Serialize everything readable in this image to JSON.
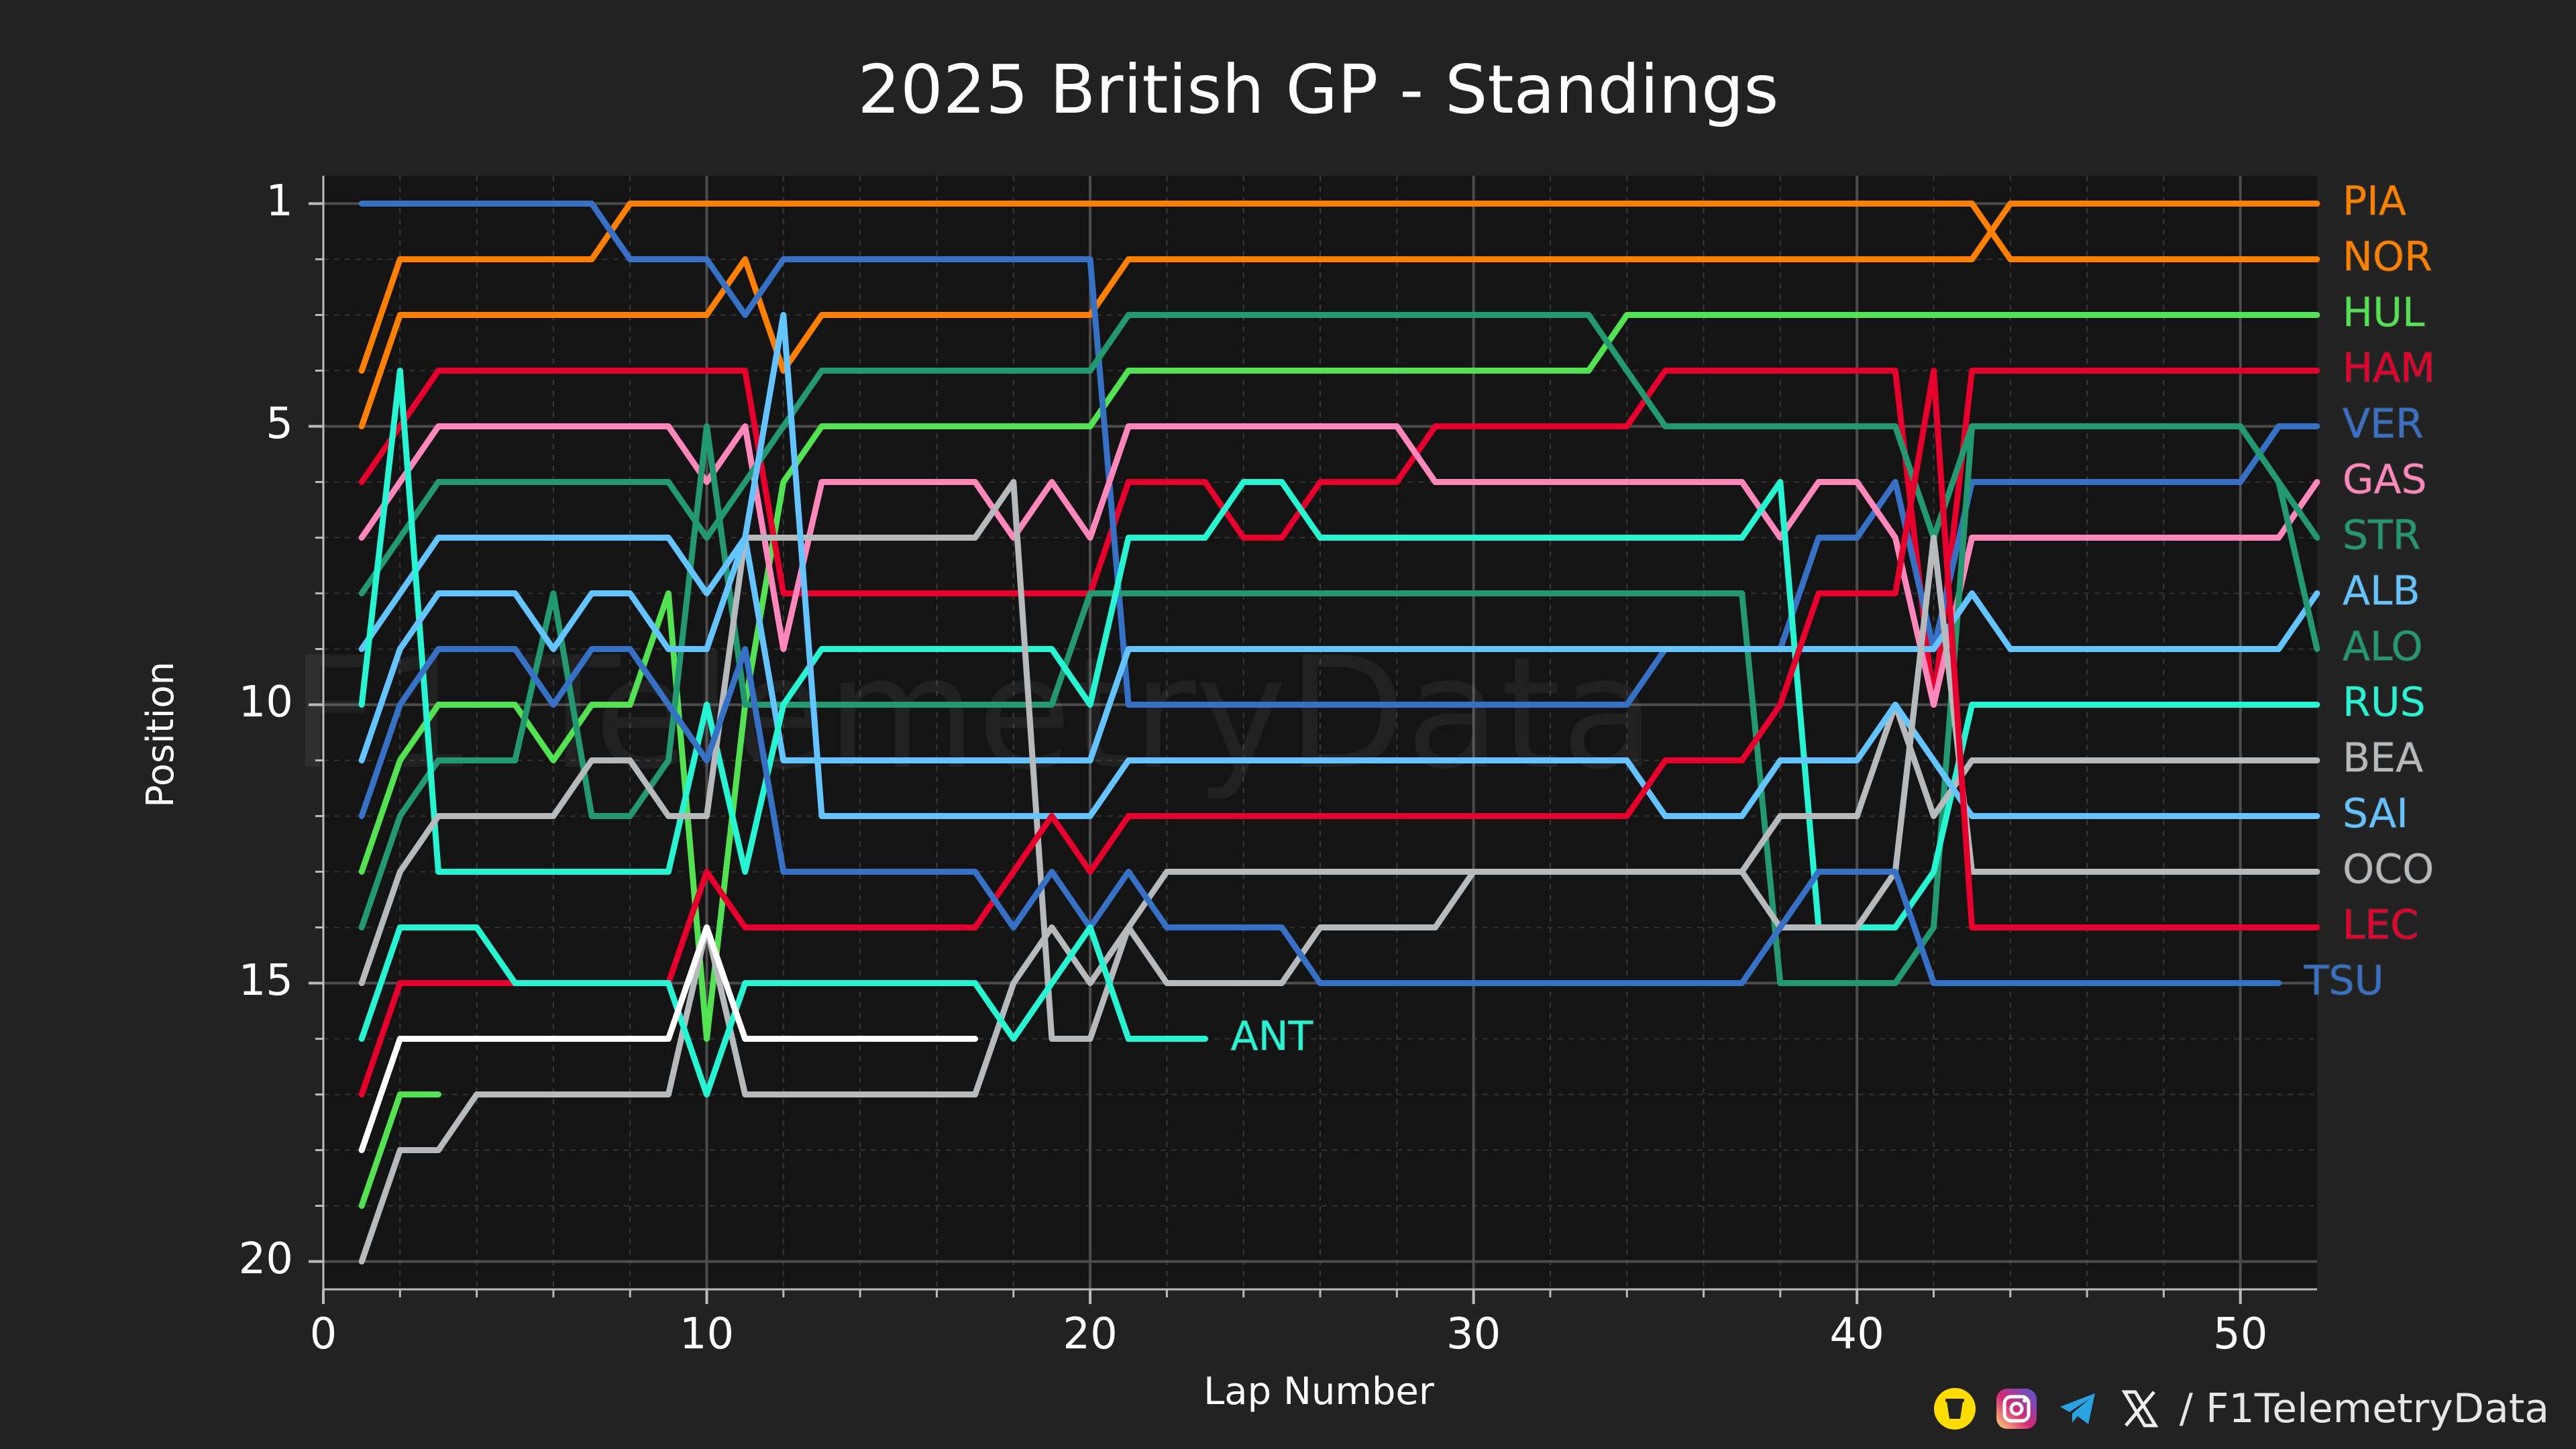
{
  "chart_data": {
    "type": "line",
    "title": "2025 British GP - Standings",
    "xlabel": "Lap Number",
    "ylabel": "Position",
    "xlim": [
      0,
      52
    ],
    "ylim": [
      20.5,
      0.5
    ],
    "x_ticks": [
      0,
      10,
      20,
      30,
      40,
      50
    ],
    "y_ticks": [
      1,
      5,
      10,
      15,
      20
    ],
    "grid": true,
    "y_inverted": true,
    "watermark": "F1 TelemetryData",
    "series": [
      {
        "name": "NOR",
        "color": "#ff8000",
        "values": [
          [
            1,
            4
          ],
          [
            2,
            2
          ],
          [
            7,
            2
          ],
          [
            8,
            1
          ],
          [
            43,
            1
          ],
          [
            44,
            2
          ],
          [
            52,
            2
          ]
        ]
      },
      {
        "name": "PIA",
        "color": "#ff8000",
        "values": [
          [
            1,
            5
          ],
          [
            2,
            3
          ],
          [
            10,
            3
          ],
          [
            11,
            2
          ],
          [
            12,
            4
          ],
          [
            13,
            3
          ],
          [
            20,
            3
          ],
          [
            21,
            2
          ],
          [
            43,
            2
          ],
          [
            44,
            1
          ],
          [
            52,
            1
          ]
        ]
      },
      {
        "name": "HUL",
        "color": "#52e252",
        "values": [
          [
            1,
            13
          ],
          [
            2,
            11
          ],
          [
            3,
            10
          ],
          [
            5,
            10
          ],
          [
            6,
            11
          ],
          [
            7,
            10
          ],
          [
            8,
            10
          ],
          [
            9,
            8
          ],
          [
            10,
            16
          ],
          [
            11,
            10
          ],
          [
            12,
            6
          ],
          [
            13,
            5
          ],
          [
            20,
            5
          ],
          [
            21,
            4
          ],
          [
            33,
            4
          ],
          [
            34,
            3
          ],
          [
            52,
            3
          ]
        ]
      },
      {
        "name": "HAM",
        "color": "#e8002d",
        "values": [
          [
            1,
            6
          ],
          [
            2,
            5
          ],
          [
            3,
            4
          ],
          [
            11,
            4
          ],
          [
            12,
            8
          ],
          [
            20,
            8
          ],
          [
            21,
            6
          ],
          [
            23,
            6
          ],
          [
            24,
            7
          ],
          [
            25,
            7
          ],
          [
            26,
            6
          ],
          [
            28,
            6
          ],
          [
            29,
            5
          ],
          [
            34,
            5
          ],
          [
            35,
            4
          ],
          [
            41,
            4
          ],
          [
            42,
            10
          ],
          [
            43,
            4
          ],
          [
            52,
            4
          ]
        ]
      },
      {
        "name": "VER",
        "color": "#3671c6",
        "values": [
          [
            1,
            1
          ],
          [
            7,
            1
          ],
          [
            8,
            2
          ],
          [
            10,
            2
          ],
          [
            11,
            3
          ],
          [
            12,
            2
          ],
          [
            20,
            2
          ],
          [
            21,
            10
          ],
          [
            34,
            10
          ],
          [
            35,
            9
          ],
          [
            38,
            9
          ],
          [
            39,
            7
          ],
          [
            40,
            7
          ],
          [
            41,
            6
          ],
          [
            42,
            9
          ],
          [
            43,
            6
          ],
          [
            50,
            6
          ],
          [
            51,
            5
          ],
          [
            52,
            5
          ]
        ]
      },
      {
        "name": "GAS",
        "color": "#ff87bc",
        "values": [
          [
            1,
            7
          ],
          [
            2,
            6
          ],
          [
            3,
            5
          ],
          [
            9,
            5
          ],
          [
            10,
            6
          ],
          [
            11,
            5
          ],
          [
            12,
            9
          ],
          [
            13,
            6
          ],
          [
            17,
            6
          ],
          [
            18,
            7
          ],
          [
            19,
            6
          ],
          [
            20,
            7
          ],
          [
            21,
            5
          ],
          [
            28,
            5
          ],
          [
            29,
            6
          ],
          [
            37,
            6
          ],
          [
            38,
            7
          ],
          [
            39,
            6
          ],
          [
            40,
            6
          ],
          [
            41,
            7
          ],
          [
            42,
            10
          ],
          [
            43,
            7
          ],
          [
            50,
            7
          ],
          [
            51,
            7
          ],
          [
            52,
            6
          ]
        ]
      },
      {
        "name": "STR",
        "color": "#229971",
        "values": [
          [
            1,
            14
          ],
          [
            2,
            12
          ],
          [
            3,
            11
          ],
          [
            5,
            11
          ],
          [
            6,
            8
          ],
          [
            7,
            12
          ],
          [
            8,
            12
          ],
          [
            9,
            11
          ],
          [
            10,
            5
          ],
          [
            11,
            10
          ],
          [
            19,
            10
          ],
          [
            20,
            8
          ],
          [
            21,
            8
          ],
          [
            37,
            8
          ],
          [
            38,
            15
          ],
          [
            41,
            15
          ],
          [
            42,
            14
          ],
          [
            43,
            5
          ],
          [
            50,
            5
          ],
          [
            51,
            6
          ],
          [
            52,
            7
          ]
        ]
      },
      {
        "name": "ALB",
        "color": "#64c4ff",
        "values": [
          [
            1,
            9
          ],
          [
            2,
            8
          ],
          [
            3,
            7
          ],
          [
            9,
            7
          ],
          [
            10,
            8
          ],
          [
            11,
            7
          ],
          [
            12,
            11
          ],
          [
            13,
            11
          ],
          [
            20,
            11
          ],
          [
            21,
            9
          ],
          [
            42,
            9
          ],
          [
            43,
            8
          ],
          [
            44,
            9
          ],
          [
            51,
            9
          ],
          [
            52,
            8
          ]
        ]
      },
      {
        "name": "ALO",
        "color": "#229971",
        "values": [
          [
            1,
            8
          ],
          [
            2,
            7
          ],
          [
            3,
            6
          ],
          [
            9,
            6
          ],
          [
            10,
            7
          ],
          [
            11,
            6
          ],
          [
            12,
            5
          ],
          [
            13,
            4
          ],
          [
            20,
            4
          ],
          [
            21,
            3
          ],
          [
            33,
            3
          ],
          [
            34,
            4
          ],
          [
            35,
            5
          ],
          [
            41,
            5
          ],
          [
            42,
            7
          ],
          [
            43,
            5
          ],
          [
            50,
            5
          ],
          [
            51,
            6
          ],
          [
            52,
            9
          ]
        ]
      },
      {
        "name": "RUS",
        "color": "#27f4d2",
        "values": [
          [
            1,
            10
          ],
          [
            2,
            4
          ],
          [
            3,
            13
          ],
          [
            5,
            13
          ],
          [
            6,
            13
          ],
          [
            9,
            13
          ],
          [
            10,
            10
          ],
          [
            11,
            13
          ],
          [
            12,
            10
          ],
          [
            13,
            9
          ],
          [
            19,
            9
          ],
          [
            20,
            10
          ],
          [
            21,
            7
          ],
          [
            23,
            7
          ],
          [
            24,
            6
          ],
          [
            25,
            6
          ],
          [
            26,
            7
          ],
          [
            37,
            7
          ],
          [
            38,
            6
          ],
          [
            39,
            14
          ],
          [
            41,
            14
          ],
          [
            42,
            13
          ],
          [
            43,
            10
          ],
          [
            52,
            10
          ]
        ]
      },
      {
        "name": "BEA",
        "color": "#b6babd",
        "values": [
          [
            1,
            15
          ],
          [
            2,
            13
          ],
          [
            3,
            12
          ],
          [
            6,
            12
          ],
          [
            7,
            11
          ],
          [
            8,
            11
          ],
          [
            9,
            12
          ],
          [
            10,
            12
          ],
          [
            11,
            7
          ],
          [
            17,
            7
          ],
          [
            18,
            6
          ],
          [
            19,
            16
          ],
          [
            20,
            16
          ],
          [
            21,
            14
          ],
          [
            22,
            13
          ],
          [
            37,
            13
          ],
          [
            38,
            12
          ],
          [
            40,
            12
          ],
          [
            41,
            10
          ],
          [
            42,
            12
          ],
          [
            43,
            11
          ],
          [
            52,
            11
          ]
        ]
      },
      {
        "name": "SAI",
        "color": "#64c4ff",
        "values": [
          [
            1,
            11
          ],
          [
            2,
            9
          ],
          [
            3,
            8
          ],
          [
            5,
            8
          ],
          [
            6,
            9
          ],
          [
            7,
            8
          ],
          [
            8,
            8
          ],
          [
            9,
            9
          ],
          [
            10,
            9
          ],
          [
            11,
            7
          ],
          [
            12,
            3
          ],
          [
            13,
            12
          ],
          [
            14,
            12
          ],
          [
            20,
            12
          ],
          [
            21,
            11
          ],
          [
            34,
            11
          ],
          [
            35,
            12
          ],
          [
            37,
            12
          ],
          [
            38,
            11
          ],
          [
            40,
            11
          ],
          [
            41,
            10
          ],
          [
            42,
            11
          ],
          [
            43,
            12
          ],
          [
            52,
            12
          ]
        ]
      },
      {
        "name": "OCO",
        "color": "#b6babd",
        "values": [
          [
            1,
            20
          ],
          [
            2,
            18
          ],
          [
            3,
            18
          ],
          [
            4,
            17
          ],
          [
            9,
            17
          ],
          [
            10,
            14
          ],
          [
            11,
            17
          ],
          [
            17,
            17
          ],
          [
            18,
            15
          ],
          [
            19,
            14
          ],
          [
            20,
            15
          ],
          [
            21,
            14
          ],
          [
            22,
            15
          ],
          [
            25,
            15
          ],
          [
            26,
            14
          ],
          [
            29,
            14
          ],
          [
            30,
            13
          ],
          [
            37,
            13
          ],
          [
            38,
            14
          ],
          [
            40,
            14
          ],
          [
            41,
            13
          ],
          [
            42,
            7
          ],
          [
            43,
            13
          ],
          [
            52,
            13
          ]
        ]
      },
      {
        "name": "LEC",
        "color": "#e8002d",
        "values": [
          [
            1,
            17
          ],
          [
            2,
            15
          ],
          [
            9,
            15
          ],
          [
            10,
            13
          ],
          [
            11,
            14
          ],
          [
            17,
            14
          ],
          [
            18,
            13
          ],
          [
            19,
            12
          ],
          [
            20,
            13
          ],
          [
            21,
            12
          ],
          [
            34,
            12
          ],
          [
            35,
            11
          ],
          [
            37,
            11
          ],
          [
            38,
            10
          ],
          [
            39,
            8
          ],
          [
            40,
            8
          ],
          [
            41,
            8
          ],
          [
            42,
            4
          ],
          [
            43,
            14
          ],
          [
            52,
            14
          ]
        ]
      },
      {
        "name": "TSU",
        "color": "#3671c6",
        "values": [
          [
            1,
            12
          ],
          [
            2,
            10
          ],
          [
            3,
            9
          ],
          [
            5,
            9
          ],
          [
            6,
            10
          ],
          [
            7,
            9
          ],
          [
            8,
            9
          ],
          [
            9,
            10
          ],
          [
            10,
            11
          ],
          [
            11,
            9
          ],
          [
            12,
            13
          ],
          [
            17,
            13
          ],
          [
            18,
            14
          ],
          [
            19,
            13
          ],
          [
            20,
            14
          ],
          [
            21,
            13
          ],
          [
            22,
            14
          ],
          [
            25,
            14
          ],
          [
            26,
            15
          ],
          [
            37,
            15
          ],
          [
            38,
            14
          ],
          [
            39,
            13
          ],
          [
            41,
            13
          ],
          [
            42,
            15
          ],
          [
            51,
            15
          ]
        ]
      },
      {
        "name": "ANT",
        "color": "#27f4d2",
        "values": [
          [
            1,
            16
          ],
          [
            2,
            14
          ],
          [
            4,
            14
          ],
          [
            5,
            15
          ],
          [
            6,
            15
          ],
          [
            9,
            15
          ],
          [
            10,
            17
          ],
          [
            11,
            15
          ],
          [
            17,
            15
          ],
          [
            18,
            16
          ],
          [
            19,
            15
          ],
          [
            20,
            14
          ],
          [
            21,
            16
          ],
          [
            23,
            16
          ]
        ]
      },
      {
        "name": "",
        "color": "#ffffff",
        "values": [
          [
            1,
            18
          ],
          [
            2,
            16
          ],
          [
            9,
            16
          ],
          [
            10,
            14
          ],
          [
            11,
            16
          ],
          [
            17,
            16
          ]
        ]
      },
      {
        "name": "",
        "color": "#52e252",
        "values": [
          [
            1,
            19
          ],
          [
            2,
            17
          ],
          [
            3,
            17
          ]
        ]
      }
    ]
  },
  "footer": {
    "handle": "/ F1TelemetryData",
    "icons": [
      "buymeacoffee-icon",
      "instagram-icon",
      "telegram-icon",
      "x-icon"
    ]
  }
}
